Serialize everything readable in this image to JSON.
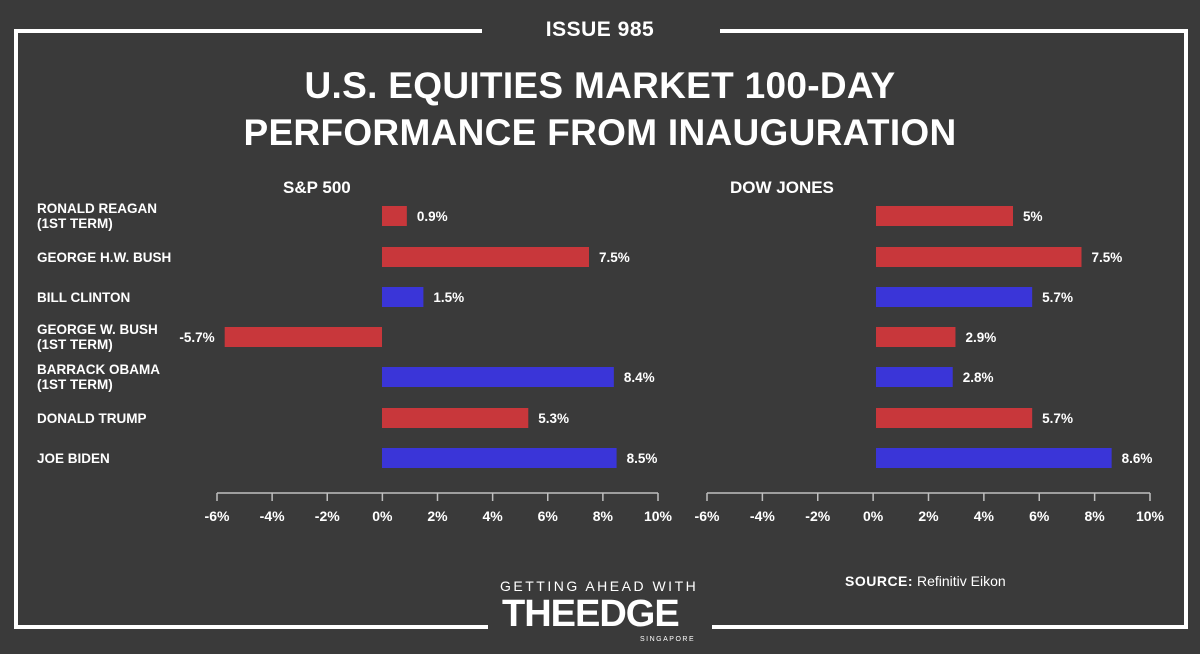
{
  "issue": "ISSUE 985",
  "title_line1": "U.S. EQUITIES MARKET 100-DAY",
  "title_line2": "PERFORMANCE FROM INAUGURATION",
  "colors": {
    "background": "#3a3a3a",
    "republican_red": "#c8373b",
    "democrat_blue": "#3a35d8",
    "axis": "#bfbfbf",
    "text": "#ffffff"
  },
  "row_labels": [
    "RONALD REAGAN\n(1ST TERM)",
    "GEORGE H.W. BUSH",
    "BILL CLINTON",
    "GEORGE W. BUSH\n(1ST TERM)",
    "BARRACK OBAMA\n(1ST TERM)",
    "DONALD TRUMP",
    "JOE BIDEN"
  ],
  "chart_data": [
    {
      "type": "bar",
      "orientation": "horizontal",
      "title": "S&P 500",
      "categories": [
        "RONALD REAGAN (1ST TERM)",
        "GEORGE H.W. BUSH",
        "BILL CLINTON",
        "GEORGE W. BUSH (1ST TERM)",
        "BARRACK OBAMA (1ST TERM)",
        "DONALD TRUMP",
        "JOE BIDEN"
      ],
      "values": [
        0.9,
        7.5,
        1.5,
        -5.7,
        8.4,
        5.3,
        8.5
      ],
      "value_labels": [
        "0.9%",
        "7.5%",
        "1.5%",
        "-5.7%",
        "8.4%",
        "5.3%",
        "8.5%"
      ],
      "bar_colors": [
        "red",
        "red",
        "blue",
        "red",
        "blue",
        "red",
        "blue"
      ],
      "xlim": [
        -6,
        10
      ],
      "ticks": [
        -6,
        -4,
        -2,
        0,
        2,
        4,
        6,
        8,
        10
      ],
      "tick_labels": [
        "-6%",
        "-4%",
        "-2%",
        "0%",
        "2%",
        "4%",
        "6%",
        "8%",
        "10%"
      ],
      "grid": false
    },
    {
      "type": "bar",
      "orientation": "horizontal",
      "title": "DOW JONES",
      "categories": [
        "RONALD REAGAN (1ST TERM)",
        "GEORGE H.W. BUSH",
        "BILL CLINTON",
        "GEORGE W. BUSH (1ST TERM)",
        "BARRACK OBAMA (1ST TERM)",
        "DONALD TRUMP",
        "JOE BIDEN"
      ],
      "values": [
        5,
        7.5,
        5.7,
        2.9,
        2.8,
        5.7,
        8.6
      ],
      "value_labels": [
        "5%",
        "7.5%",
        "5.7%",
        "2.9%",
        "2.8%",
        "5.7%",
        "8.6%"
      ],
      "bar_colors": [
        "red",
        "red",
        "blue",
        "red",
        "blue",
        "red",
        "blue"
      ],
      "xlim": [
        -6,
        10
      ],
      "ticks": [
        -6,
        -4,
        -2,
        0,
        2,
        4,
        6,
        8,
        10
      ],
      "tick_labels": [
        "-6%",
        "-4%",
        "-2%",
        "0%",
        "2%",
        "4%",
        "6%",
        "8%",
        "10%"
      ],
      "grid": false
    }
  ],
  "footer": {
    "tagline": "GETTING AHEAD WITH",
    "logo": "THEEDGE",
    "logo_sub": "SINGAPORE",
    "source_label": "SOURCE:",
    "source_text": "Refinitiv Eikon"
  }
}
